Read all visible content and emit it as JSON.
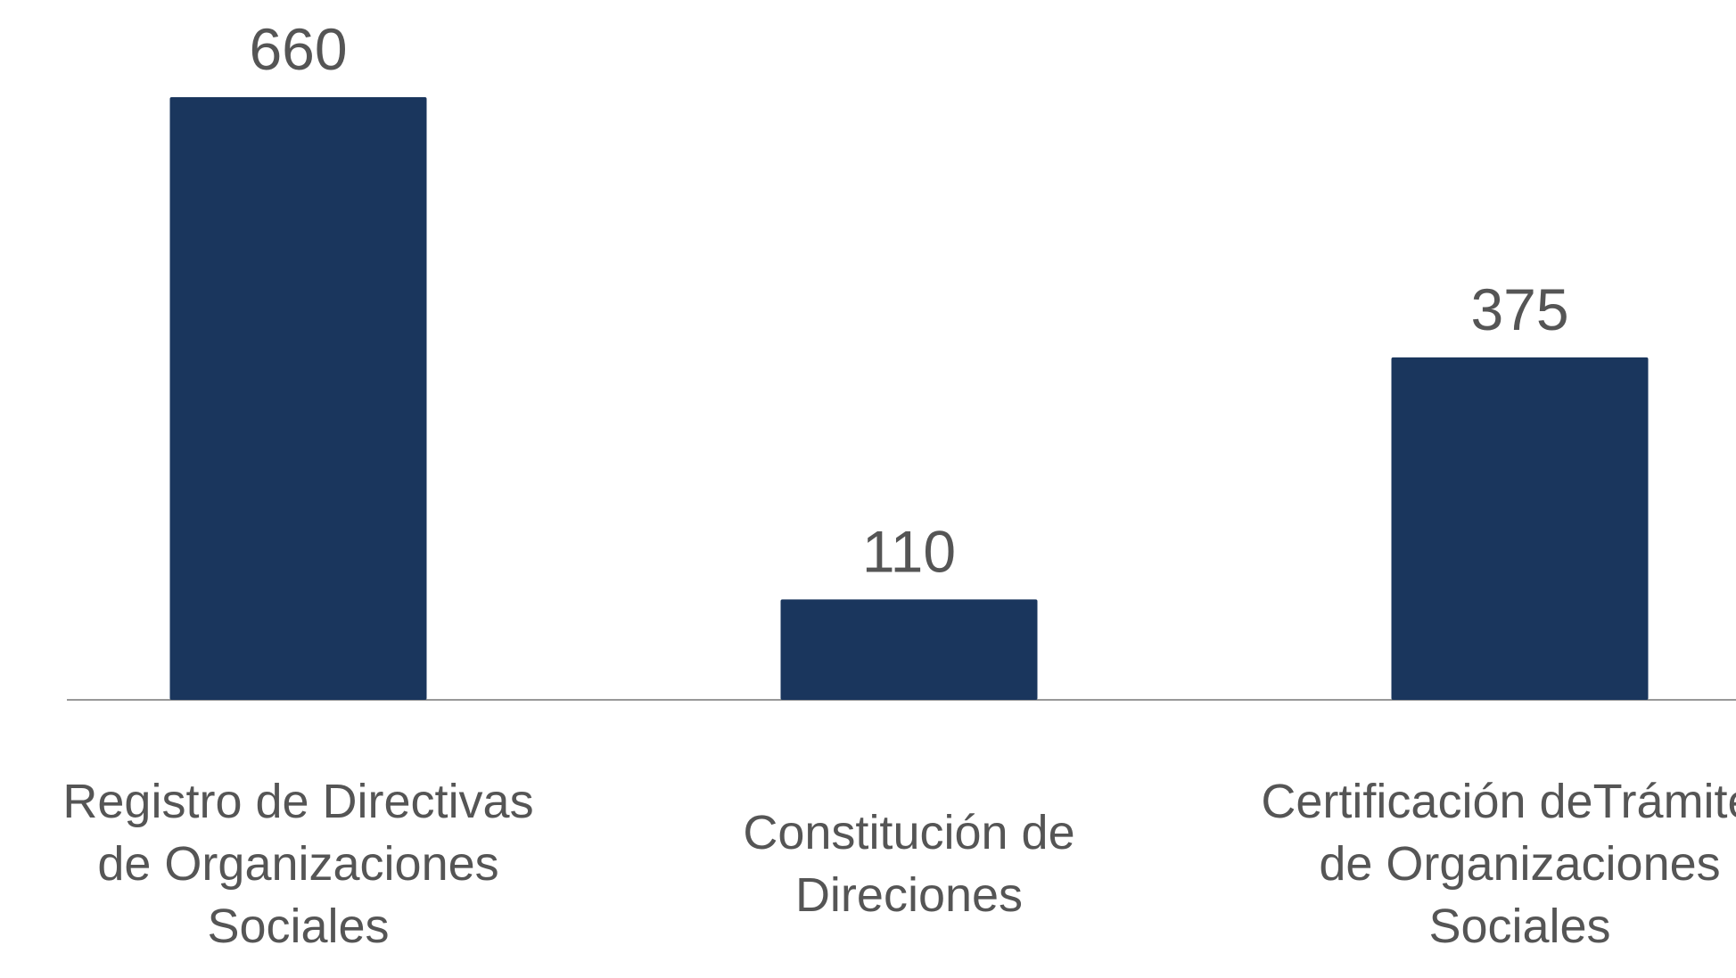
{
  "chart_data": {
    "type": "bar",
    "categories": [
      "Registro de Directivas de Organizaciones Sociales",
      "Constitución de Direciones",
      "Certificación deTrámites de Organizaciones Sociales"
    ],
    "values": [
      660,
      110,
      375
    ],
    "color": "#1a365d"
  }
}
